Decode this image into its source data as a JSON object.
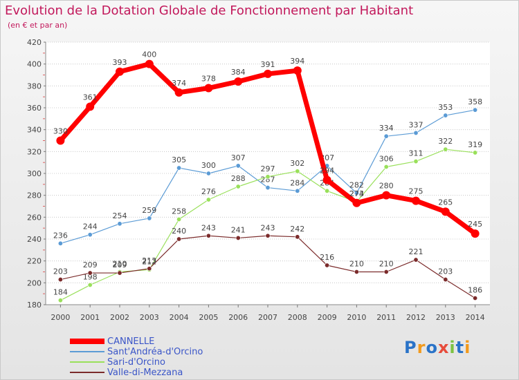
{
  "header": {
    "title": "Evolution de la Dotation Globale de Fonctionnement par Habitant",
    "subtitle": "(en € et par an)"
  },
  "brand": {
    "text": "Proxiti"
  },
  "colors": {
    "title": "#c2185b",
    "legend_text": "#3a55c8",
    "grid": "#bdbdbd",
    "labels": "#444444"
  },
  "chart_data": {
    "type": "line",
    "title": "Evolution de la Dotation Globale de Fonctionnement par Habitant",
    "subtitle": "(en € et par an)",
    "xlabel": "",
    "ylabel": "",
    "x": [
      "2000",
      "2001",
      "2002",
      "2003",
      "2004",
      "2005",
      "2006",
      "2007",
      "2008",
      "2009",
      "2010",
      "2011",
      "2012",
      "2013",
      "2014"
    ],
    "ylim": [
      180,
      420
    ],
    "yticks": [
      180,
      200,
      220,
      240,
      260,
      280,
      300,
      320,
      340,
      360,
      380,
      400,
      420
    ],
    "grid": "horizontal",
    "legend_position": "bottom-left",
    "series": [
      {
        "name": "CANNELLE",
        "color": "#ff0000",
        "emphasis": "thick",
        "values": [
          330,
          361,
          393,
          400,
          374,
          378,
          384,
          391,
          394,
          294,
          273,
          280,
          275,
          265,
          245
        ]
      },
      {
        "name": "Sant'Andréa-d'Orcino",
        "color": "#5b9bd5",
        "emphasis": "thin",
        "values": [
          236,
          244,
          254,
          259,
          305,
          300,
          307,
          287,
          284,
          307,
          282,
          334,
          337,
          353,
          358
        ]
      },
      {
        "name": "Sari-d'Orcino",
        "color": "#99e05a",
        "emphasis": "thin",
        "values": [
          184,
          198,
          210,
          212,
          258,
          276,
          288,
          297,
          302,
          284,
          274,
          306,
          311,
          322,
          319
        ]
      },
      {
        "name": "Valle-di-Mezzana",
        "color": "#7b2b2b",
        "emphasis": "thin",
        "values": [
          203,
          209,
          209,
          213,
          240,
          243,
          241,
          243,
          242,
          216,
          210,
          210,
          221,
          203,
          186
        ]
      }
    ]
  }
}
